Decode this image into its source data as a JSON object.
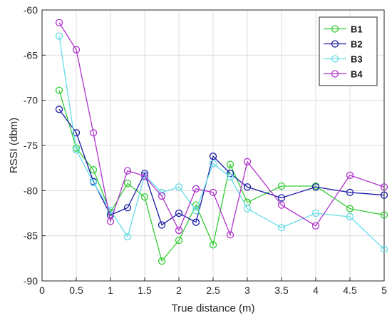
{
  "chart_data": {
    "type": "line",
    "xlabel": "True distance (m)",
    "ylabel": "RSSI (dbm)",
    "xlim": [
      0,
      5
    ],
    "ylim": [
      -90,
      -60
    ],
    "xticks": [
      0,
      0.5,
      1,
      1.5,
      2,
      2.5,
      3,
      3.5,
      4,
      4.5,
      5
    ],
    "yticks": [
      -90,
      -85,
      -80,
      -75,
      -70,
      -65,
      -60
    ],
    "xtick_labels": [
      "0",
      "0.5",
      "1",
      "1.5",
      "2",
      "2.5",
      "3",
      "3.5",
      "4",
      "4.5",
      "5"
    ],
    "ytick_labels": [
      "-90",
      "-85",
      "-80",
      "-75",
      "-70",
      "-65",
      "-60"
    ],
    "grid": true,
    "legend": "top-right",
    "x": [
      0.25,
      0.5,
      0.75,
      1,
      1.25,
      1.5,
      1.75,
      2,
      2.25,
      2.5,
      2.75,
      3,
      3.5,
      4,
      4.5,
      5
    ],
    "series": [
      {
        "name": "B1",
        "color": "#33cc33",
        "values": [
          -68.9,
          -75.3,
          -77.7,
          -82.4,
          -79.2,
          -80.7,
          -87.8,
          -85.5,
          -81.6,
          -86.0,
          -77.1,
          -81.3,
          -79.5,
          -79.5,
          -82.0,
          -82.7
        ]
      },
      {
        "name": "B2",
        "color": "#1a1aa6",
        "values": [
          -71.0,
          -73.6,
          -79.0,
          -82.7,
          -81.9,
          -78.1,
          -83.8,
          -82.5,
          -83.5,
          -76.2,
          -78.1,
          -79.6,
          -80.8,
          -79.6,
          -80.2,
          -80.5
        ]
      },
      {
        "name": "B3",
        "color": "#66dde8",
        "values": [
          -62.9,
          -75.5,
          -79.1,
          -82.2,
          -85.1,
          -78.3,
          -80.2,
          -79.6,
          -82.2,
          -77.0,
          -78.5,
          -82.0,
          -84.1,
          -82.5,
          -82.9,
          -86.5
        ]
      },
      {
        "name": "B4",
        "color": "#b033cc",
        "values": [
          -61.4,
          -64.4,
          -73.6,
          -83.4,
          -77.8,
          -78.4,
          -80.6,
          -84.4,
          -79.8,
          -80.2,
          -84.9,
          -76.8,
          -81.6,
          -83.9,
          -78.3,
          -79.6
        ]
      }
    ]
  }
}
